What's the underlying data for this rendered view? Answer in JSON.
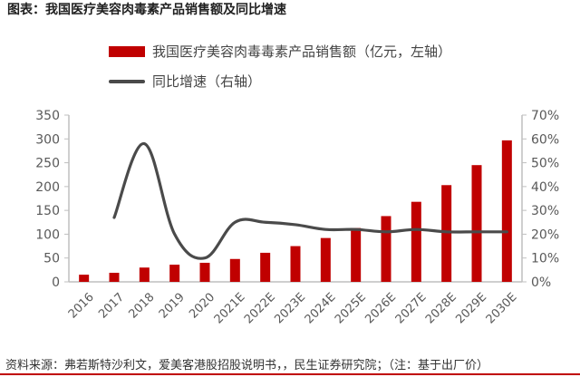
{
  "page_title": "图表：我国医疗美容肉毒素产品销售额及同比增速",
  "legend": {
    "bar_label": "我国医疗美容肉毒毒素产品销售额（亿元，左轴）",
    "line_label": "同比增速（右轴）"
  },
  "source": "资料来源：弗若斯特沙利文，爱美客港股招股说明书，，民生证券研究院；（注：基于出厂价）",
  "colors": {
    "bar": "#c00000",
    "line": "#4a4a4a",
    "axis": "#bfbfbf",
    "text": "#595959"
  },
  "chart_data": {
    "type": "bar",
    "categories": [
      "2016",
      "2017",
      "2018",
      "2019",
      "2020",
      "2021E",
      "2022E",
      "2023E",
      "2024E",
      "2025E",
      "2026E",
      "2027E",
      "2028E",
      "2029E",
      "2030E"
    ],
    "series": [
      {
        "name": "我国医疗美容肉毒毒素产品销售额（亿元，左轴）",
        "axis": "left",
        "type": "bar",
        "values": [
          15,
          19,
          30,
          36,
          40,
          48,
          61,
          75,
          92,
          113,
          138,
          168,
          203,
          245,
          297
        ]
      },
      {
        "name": "同比增速（右轴）",
        "axis": "right",
        "type": "line",
        "values": [
          null,
          27,
          58,
          20,
          10,
          25,
          25,
          24,
          22,
          22,
          21,
          22,
          21,
          21,
          21
        ]
      }
    ],
    "y_left": {
      "ylim": [
        0,
        350
      ],
      "ticks": [
        "0",
        "50",
        "100",
        "150",
        "200",
        "250",
        "300",
        "350"
      ]
    },
    "y_right": {
      "ylim": [
        0,
        70
      ],
      "ticks": [
        "0%",
        "10%",
        "20%",
        "30%",
        "40%",
        "50%",
        "60%",
        "70%"
      ]
    },
    "legend_position": "top",
    "grid": false
  }
}
